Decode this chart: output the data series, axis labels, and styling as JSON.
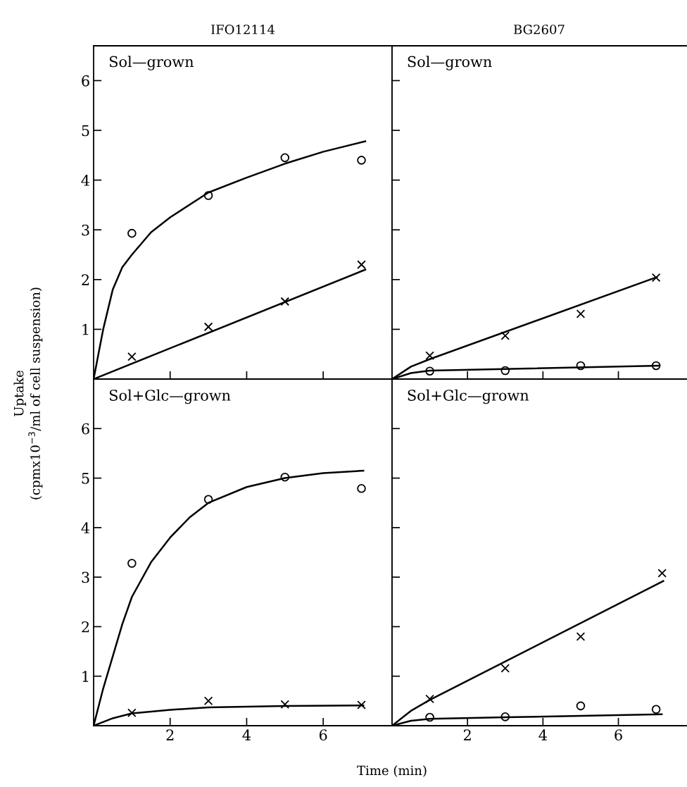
{
  "chart_data": [
    {
      "type": "scatter",
      "title": "IFO12114",
      "ylabel": "Uptake\n(cpmx10$^{−3}$/ml of cell suspension)",
      "annotations": [
        "Sol—grown"
      ],
      "xlim": [
        0,
        7.8
      ],
      "ylim": [
        0,
        6.7
      ],
      "xticks": [
        {
          "value": 2,
          "label": null
        },
        {
          "value": 4,
          "label": null
        },
        {
          "value": 6,
          "label": null
        }
      ],
      "yticks": [
        1,
        2,
        3,
        4,
        5,
        6
      ],
      "tick_labels": "y",
      "grid": false,
      "legend": false,
      "series": [
        {
          "marker": "circle",
          "color": "#000000",
          "x": [
            1,
            3,
            5,
            7
          ],
          "values": [
            2.93,
            3.69,
            4.45,
            4.4
          ]
        },
        {
          "marker": "cross",
          "color": "#000000",
          "x": [
            1,
            3,
            5,
            7
          ],
          "values": [
            0.45,
            1.05,
            1.56,
            2.3
          ]
        },
        {
          "type": "line",
          "marker": "none",
          "color": "#000000",
          "x": [
            0,
            0.25,
            0.5,
            0.75,
            1,
            1.5,
            2,
            3,
            4,
            5,
            6,
            7.1
          ],
          "values": [
            0,
            1.0,
            1.8,
            2.25,
            2.5,
            2.95,
            3.25,
            3.75,
            4.05,
            4.33,
            4.57,
            4.78
          ]
        },
        {
          "type": "line",
          "marker": "none",
          "color": "#000000",
          "x": [
            0,
            7.1
          ],
          "values": [
            0,
            2.2
          ]
        }
      ]
    },
    {
      "type": "scatter",
      "title": "BG2607",
      "annotations": [
        "Sol—grown"
      ],
      "xlim": [
        0,
        7.8
      ],
      "ylim": [
        0,
        6.7
      ],
      "xticks": [
        {
          "value": 2,
          "label": null
        },
        {
          "value": 4,
          "label": null
        },
        {
          "value": 6,
          "label": null
        }
      ],
      "yticks": [
        {
          "value": 1,
          "label": null
        },
        {
          "value": 2,
          "label": null
        },
        {
          "value": 3,
          "label": null
        },
        {
          "value": 4,
          "label": null
        },
        {
          "value": 5,
          "label": null
        },
        {
          "value": 6,
          "label": null
        }
      ],
      "tick_labels": false,
      "grid": false,
      "legend": false,
      "series": [
        {
          "marker": "cross",
          "color": "#000000",
          "x": [
            1,
            3,
            5,
            7
          ],
          "values": [
            0.47,
            0.87,
            1.31,
            2.04
          ]
        },
        {
          "marker": "circle",
          "color": "#000000",
          "x": [
            1,
            3,
            5,
            7
          ],
          "values": [
            0.16,
            0.17,
            0.27,
            0.27
          ]
        },
        {
          "type": "line",
          "marker": "none",
          "color": "#000000",
          "x": [
            0,
            0.5,
            1,
            7.02
          ],
          "values": [
            0,
            0.25,
            0.4,
            2.05
          ]
        },
        {
          "type": "line",
          "marker": "none",
          "color": "#000000",
          "x": [
            0,
            0.5,
            1,
            7.07
          ],
          "values": [
            0,
            0.12,
            0.17,
            0.27
          ]
        }
      ]
    },
    {
      "type": "scatter",
      "xlabel": "Time (min)",
      "annotations": [
        "Sol+Glc—grown"
      ],
      "xlim": [
        0,
        7.8
      ],
      "ylim": [
        0,
        7.0
      ],
      "xticks": [
        2,
        4,
        6
      ],
      "yticks": [
        1,
        2,
        3,
        4,
        5,
        6
      ],
      "grid": false,
      "legend": false,
      "series": [
        {
          "marker": "circle",
          "color": "#000000",
          "x": [
            1,
            3,
            5,
            7
          ],
          "values": [
            3.28,
            4.57,
            5.02,
            4.79
          ]
        },
        {
          "marker": "cross",
          "color": "#000000",
          "x": [
            1,
            3,
            5,
            7
          ],
          "values": [
            0.26,
            0.5,
            0.43,
            0.42
          ]
        },
        {
          "type": "line",
          "marker": "none",
          "color": "#000000",
          "x": [
            0,
            0.25,
            0.5,
            0.75,
            1,
            1.5,
            2,
            2.5,
            3,
            4,
            5,
            6,
            7.05
          ],
          "values": [
            0,
            0.75,
            1.4,
            2.05,
            2.6,
            3.3,
            3.8,
            4.2,
            4.5,
            4.82,
            5.0,
            5.1,
            5.15
          ]
        },
        {
          "type": "line",
          "marker": "none",
          "color": "#000000",
          "x": [
            0,
            0.5,
            1,
            2,
            3,
            5,
            7.05
          ],
          "values": [
            0,
            0.15,
            0.25,
            0.32,
            0.37,
            0.4,
            0.41
          ]
        }
      ]
    },
    {
      "type": "scatter",
      "annotations": [
        "Sol+Glc—grown"
      ],
      "xlim": [
        0,
        7.8
      ],
      "ylim": [
        0,
        7.0
      ],
      "xticks": [
        2,
        4,
        6
      ],
      "yticks": [
        {
          "value": 1,
          "label": null
        },
        {
          "value": 2,
          "label": null
        },
        {
          "value": 3,
          "label": null
        },
        {
          "value": 4,
          "label": null
        },
        {
          "value": 5,
          "label": null
        },
        {
          "value": 6,
          "label": null
        }
      ],
      "tick_labels": "x",
      "grid": false,
      "legend": false,
      "series": [
        {
          "marker": "cross",
          "color": "#000000",
          "x": [
            1,
            3,
            5,
            7.16
          ],
          "values": [
            0.54,
            1.16,
            1.8,
            3.08
          ]
        },
        {
          "marker": "circle",
          "color": "#000000",
          "x": [
            1,
            3,
            5,
            7
          ],
          "values": [
            0.17,
            0.18,
            0.4,
            0.33
          ]
        },
        {
          "type": "line",
          "marker": "none",
          "color": "#000000",
          "x": [
            0,
            0.5,
            1,
            7.19
          ],
          "values": [
            0,
            0.3,
            0.52,
            2.92
          ]
        },
        {
          "type": "line",
          "marker": "none",
          "color": "#000000",
          "x": [
            0,
            0.5,
            1,
            3,
            7.15
          ],
          "values": [
            0,
            0.1,
            0.14,
            0.17,
            0.23
          ]
        }
      ]
    }
  ]
}
